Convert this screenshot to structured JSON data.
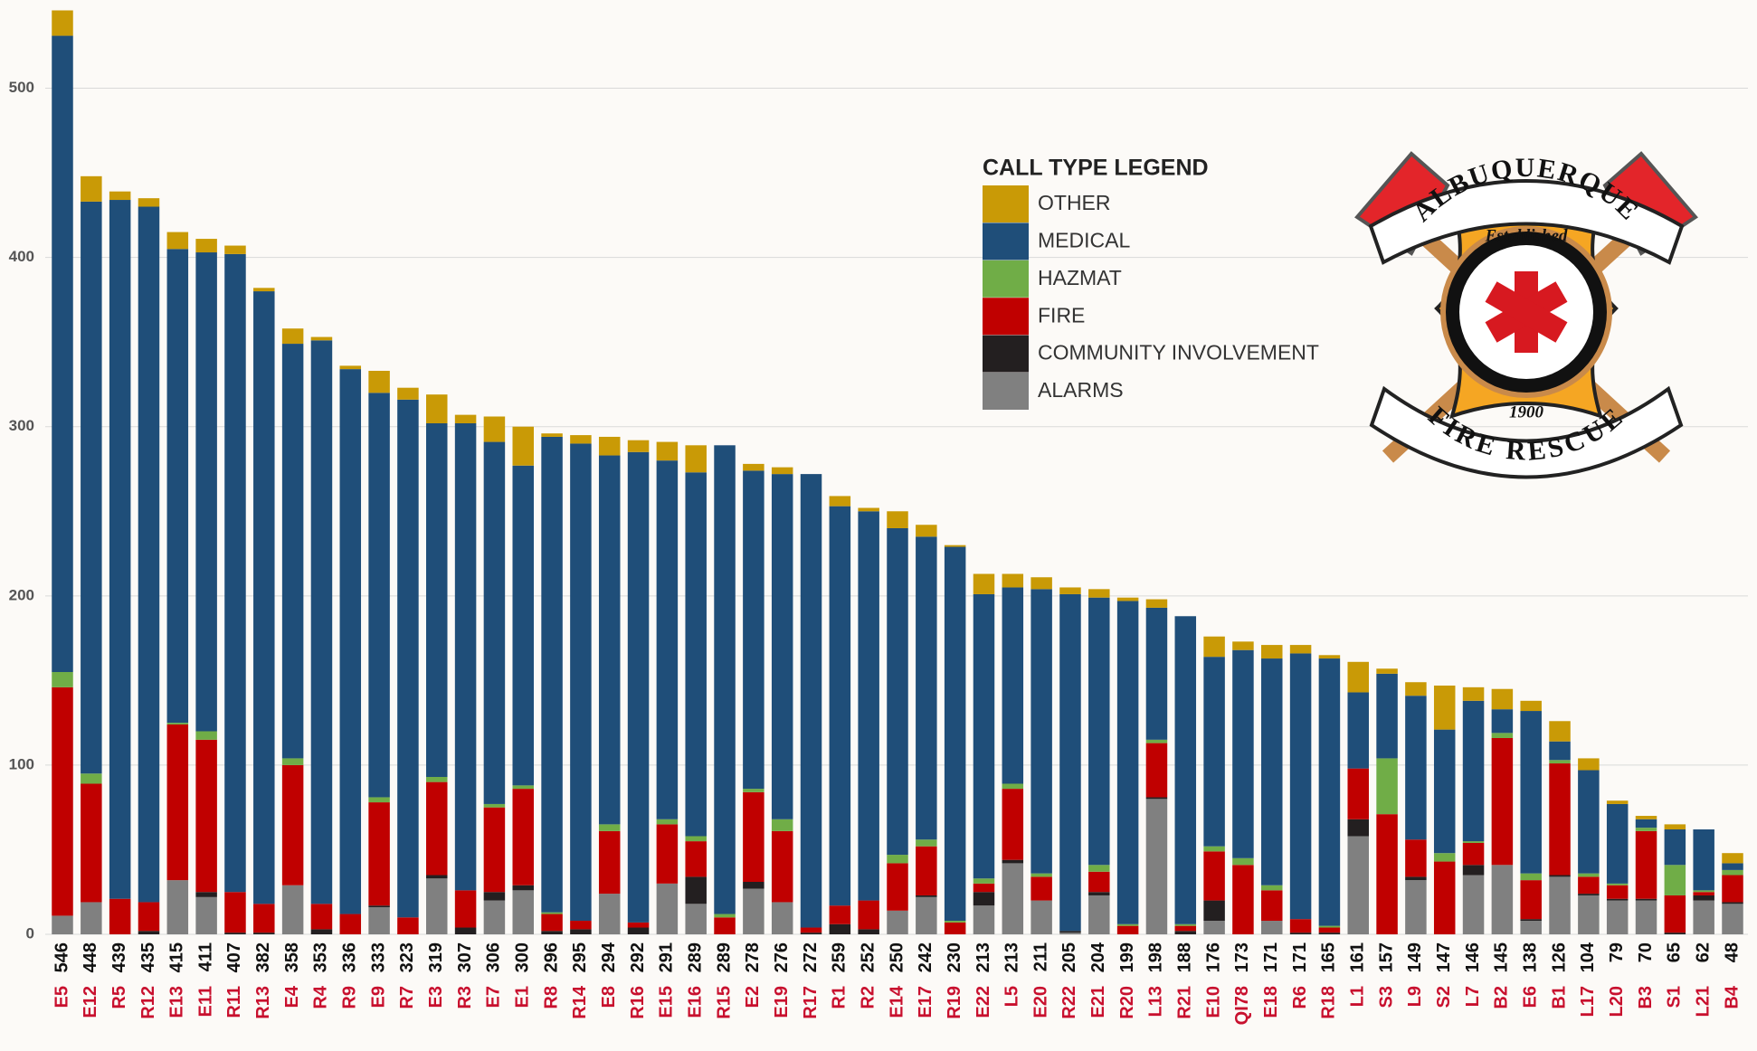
{
  "chart_data": {
    "type": "stacked_bar",
    "categories": [
      "E5",
      "E12",
      "R5",
      "R12",
      "E13",
      "E11",
      "R11",
      "R13",
      "E4",
      "R4",
      "R9",
      "E9",
      "R7",
      "E3",
      "R3",
      "E7",
      "E1",
      "R8",
      "R14",
      "E8",
      "R16",
      "E15",
      "E16",
      "R15",
      "E2",
      "E19",
      "R17",
      "R1",
      "R2",
      "E14",
      "E17",
      "R19",
      "E22",
      "L5",
      "E20",
      "R22",
      "E21",
      "R20",
      "L13",
      "R21",
      "E10",
      "QI78",
      "E18",
      "R6",
      "R18",
      "L1",
      "S3",
      "L9",
      "S2",
      "L7",
      "B2",
      "E6",
      "B1",
      "L17",
      "L20",
      "B3",
      "S1",
      "L21",
      "B4"
    ],
    "totals": [
      546,
      448,
      439,
      435,
      415,
      411,
      407,
      382,
      358,
      353,
      336,
      333,
      323,
      319,
      307,
      306,
      300,
      296,
      295,
      294,
      292,
      291,
      289,
      289,
      278,
      276,
      272,
      259,
      252,
      250,
      242,
      230,
      213,
      213,
      211,
      205,
      204,
      199,
      198,
      188,
      176,
      173,
      171,
      171,
      165,
      161,
      157,
      149,
      147,
      146,
      145,
      138,
      126,
      104,
      79,
      70,
      65,
      62,
      48
    ],
    "series": [
      {
        "name": "ALARMS",
        "color": "#808080",
        "values": [
          11,
          19,
          0,
          0,
          32,
          22,
          0,
          0,
          29,
          0,
          0,
          16,
          0,
          33,
          0,
          20,
          26,
          0,
          0,
          24,
          0,
          30,
          18,
          0,
          27,
          19,
          0,
          0,
          0,
          14,
          22,
          0,
          17,
          42,
          20,
          1,
          23,
          0,
          80,
          0,
          8,
          0,
          8,
          0,
          0,
          58,
          0,
          32,
          0,
          35,
          41,
          8,
          34,
          23,
          20,
          20,
          0,
          20,
          18
        ]
      },
      {
        "name": "COMMUNITY INVOLVEMENT",
        "color": "#231f20",
        "values": [
          0,
          0,
          0,
          2,
          0,
          3,
          1,
          1,
          0,
          3,
          0,
          1,
          0,
          2,
          4,
          5,
          3,
          2,
          3,
          0,
          4,
          0,
          16,
          0,
          4,
          0,
          1,
          6,
          3,
          0,
          1,
          0,
          8,
          2,
          0,
          1,
          2,
          0,
          1,
          2,
          12,
          0,
          0,
          1,
          1,
          10,
          0,
          2,
          0,
          6,
          0,
          1,
          1,
          1,
          1,
          1,
          1,
          3,
          1
        ]
      },
      {
        "name": "FIRE",
        "color": "#c00000",
        "values": [
          135,
          70,
          21,
          17,
          92,
          90,
          24,
          17,
          71,
          15,
          12,
          61,
          10,
          55,
          22,
          50,
          57,
          10,
          5,
          37,
          3,
          35,
          21,
          10,
          53,
          42,
          3,
          11,
          17,
          28,
          29,
          7,
          5,
          42,
          14,
          0,
          12,
          5,
          32,
          3,
          29,
          41,
          18,
          8,
          3,
          30,
          71,
          22,
          43,
          13,
          75,
          23,
          66,
          10,
          8,
          40,
          22,
          2,
          16
        ]
      },
      {
        "name": "HAZMAT",
        "color": "#70ad47",
        "values": [
          9,
          6,
          0,
          0,
          1,
          5,
          0,
          0,
          4,
          0,
          0,
          3,
          0,
          3,
          0,
          2,
          2,
          1,
          0,
          4,
          0,
          3,
          3,
          2,
          2,
          7,
          0,
          0,
          0,
          5,
          4,
          1,
          3,
          3,
          2,
          0,
          4,
          1,
          2,
          1,
          3,
          4,
          3,
          0,
          1,
          0,
          33,
          0,
          5,
          1,
          3,
          4,
          2,
          2,
          1,
          2,
          18,
          1,
          3
        ]
      },
      {
        "name": "MEDICAL",
        "color": "#1f4e79",
        "values": [
          376,
          338,
          413,
          411,
          280,
          283,
          377,
          362,
          245,
          333,
          322,
          239,
          306,
          209,
          276,
          214,
          189,
          281,
          282,
          218,
          278,
          212,
          215,
          277,
          188,
          204,
          268,
          236,
          230,
          193,
          179,
          221,
          168,
          116,
          168,
          199,
          158,
          191,
          78,
          182,
          112,
          123,
          134,
          157,
          158,
          45,
          50,
          85,
          73,
          83,
          14,
          96,
          11,
          61,
          47,
          5,
          21,
          36,
          4
        ]
      },
      {
        "name": "OTHER",
        "color": "#c99a06",
        "values": [
          15,
          15,
          5,
          5,
          10,
          8,
          5,
          2,
          9,
          2,
          2,
          13,
          7,
          17,
          5,
          15,
          23,
          2,
          5,
          11,
          7,
          11,
          16,
          0,
          4,
          4,
          0,
          6,
          2,
          10,
          7,
          1,
          12,
          8,
          7,
          4,
          5,
          2,
          5,
          0,
          12,
          5,
          8,
          5,
          2,
          18,
          3,
          8,
          26,
          8,
          12,
          6,
          12,
          7,
          2,
          2,
          3,
          0,
          6
        ]
      }
    ],
    "ylim": [
      0,
      550
    ],
    "yticks": [
      0,
      100,
      200,
      300,
      400,
      500
    ],
    "grid": true,
    "legend_title": "CALL TYPE LEGEND",
    "legend": "upper-right"
  },
  "logo": {
    "top": "ALBUQUERQUE",
    "bottom": "FIRE RESCUE",
    "established": "Established",
    "year": "1900"
  }
}
